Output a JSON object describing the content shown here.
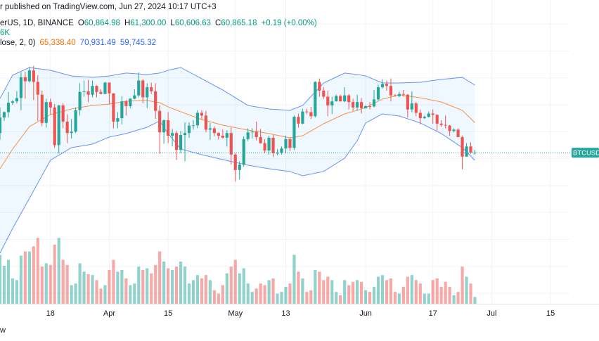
{
  "header": {
    "published": "r published on TradingView.com, Jun 27, 2024 10:17 UTC+3"
  },
  "legend": {
    "symbol": "erUS, 1D, BINANCE",
    "ohlc": [
      {
        "label": "O",
        "value": "60,864.98"
      },
      {
        "label": "H",
        "value": "61,300.00"
      },
      {
        "label": "L",
        "value": "60,606.63"
      },
      {
        "label": "C",
        "value": "60,865.18"
      }
    ],
    "change": "+0.19 (+0.00%)",
    "volume": "6K",
    "indicator": "lose, 2, 0)",
    "indicator_values": [
      "65,338.40",
      "70,931.49",
      "59,745.32"
    ]
  },
  "footer": "w",
  "chart_data": {
    "type": "candlestick",
    "price_label": "BTCUSD",
    "up_color": "#26a69a",
    "down_color": "#ef5350",
    "xlim": [
      0,
      135.5
    ],
    "xticks": [
      {
        "value": 12,
        "label": "18"
      },
      {
        "value": 26,
        "label": "Apr"
      },
      {
        "value": 40,
        "label": "15"
      },
      {
        "value": 56,
        "label": "May"
      },
      {
        "value": 68,
        "label": "13"
      },
      {
        "value": 87,
        "label": "Jun"
      },
      {
        "value": 103,
        "label": "17"
      },
      {
        "value": 117,
        "label": "Jul"
      },
      {
        "value": 131,
        "label": "15"
      }
    ],
    "ylim": [
      38430,
      83570
    ],
    "ygrid": [
      40000,
      44000,
      48000,
      52000,
      56000,
      60000,
      64000,
      68000,
      72000,
      76000,
      80000
    ],
    "grid": true,
    "x": [
      0,
      1,
      2,
      3,
      4,
      5,
      6,
      7,
      8,
      9,
      10,
      11,
      12,
      13,
      14,
      15,
      16,
      17,
      18,
      19,
      20,
      21,
      22,
      23,
      24,
      25,
      26,
      27,
      28,
      29,
      30,
      31,
      32,
      33,
      34,
      35,
      36,
      37,
      38,
      39,
      40,
      41,
      42,
      43,
      44,
      45,
      46,
      47,
      48,
      49,
      50,
      51,
      52,
      53,
      54,
      55,
      56,
      57,
      58,
      59,
      60,
      61,
      62,
      63,
      64,
      65,
      66,
      67,
      68,
      69,
      70,
      71,
      72,
      73,
      74,
      75,
      76,
      77,
      78,
      79,
      80,
      81,
      82,
      83,
      84,
      85,
      86,
      87,
      88,
      89,
      90,
      91,
      92,
      93,
      94,
      95,
      96,
      97,
      98,
      99,
      100,
      101,
      102,
      103,
      104,
      105,
      106,
      107,
      108,
      109,
      110,
      111,
      112,
      113
    ],
    "open": [
      63800,
      66100,
      66900,
      68300,
      68500,
      69000,
      72100,
      71500,
      73100,
      71400,
      69500,
      65300,
      68400,
      67600,
      62000,
      67900,
      65500,
      63800,
      64000,
      67200,
      69900,
      70000,
      69500,
      70800,
      69900,
      69600,
      71300,
      69700,
      65500,
      66000,
      68500,
      67800,
      68900,
      69400,
      71600,
      69100,
      70600,
      70000,
      67100,
      63900,
      65700,
      63400,
      63800,
      61300,
      63500,
      63800,
      64900,
      64950,
      66800,
      66400,
      64300,
      64500,
      63800,
      63400,
      63100,
      63800,
      60600,
      58300,
      59100,
      62900,
      63900,
      64000,
      63200,
      62300,
      61200,
      63100,
      60800,
      60850,
      61500,
      62900,
      61600,
      66200,
      65200,
      67000,
      66900,
      66300,
      71400,
      70100,
      69200,
      67900,
      68500,
      69300,
      68500,
      69400,
      68400,
      67600,
      68400,
      67500,
      67800,
      67750,
      68800,
      70600,
      71100,
      70800,
      69400,
      69300,
      69600,
      69500,
      67300,
      68200,
      66800,
      66000,
      66200,
      66700,
      66500,
      65200,
      65000,
      64900,
      64100,
      64300,
      63200,
      60300,
      61800,
      60864.98
    ],
    "high": [
      67600,
      67000,
      69900,
      68700,
      70000,
      72800,
      72900,
      73600,
      73800,
      72400,
      70100,
      68900,
      68900,
      68100,
      68000,
      68200,
      66600,
      65900,
      67600,
      71200,
      71600,
      71700,
      71600,
      70900,
      70300,
      71400,
      71300,
      69700,
      66900,
      69300,
      68700,
      69000,
      70300,
      72800,
      71800,
      71200,
      71300,
      71200,
      67900,
      65800,
      66900,
      64400,
      64100,
      64100,
      65400,
      65400,
      65700,
      67200,
      67200,
      67100,
      65300,
      64800,
      63900,
      64300,
      64200,
      64700,
      60800,
      59600,
      63300,
      64500,
      64500,
      65500,
      64400,
      62900,
      63400,
      63500,
      61400,
      61800,
      63400,
      63100,
      66400,
      66700,
      67400,
      67400,
      67700,
      71500,
      71900,
      70600,
      70100,
      69200,
      69500,
      69500,
      70600,
      69600,
      68900,
      69500,
      69000,
      67900,
      68400,
      70200,
      71000,
      71800,
      71600,
      71900,
      69600,
      69900,
      70200,
      69600,
      70000,
      68400,
      67300,
      66400,
      67000,
      67300,
      66600,
      65700,
      66400,
      65000,
      64500,
      64500,
      63400,
      62300,
      62400,
      61300
    ],
    "low": [
      62800,
      65600,
      66100,
      68000,
      68200,
      67200,
      68900,
      71300,
      68700,
      65600,
      64800,
      64600,
      66600,
      61600,
      60800,
      64500,
      62300,
      63000,
      63800,
      66400,
      69200,
      68400,
      69100,
      69100,
      69600,
      69600,
      68100,
      64500,
      64500,
      65100,
      66400,
      67500,
      68800,
      69100,
      68200,
      67500,
      69600,
      65900,
      60700,
      62200,
      62300,
      61800,
      59800,
      60800,
      59600,
      63100,
      64300,
      64500,
      65800,
      63900,
      62800,
      63300,
      62800,
      63000,
      61800,
      59100,
      56600,
      56900,
      58800,
      62600,
      63000,
      62700,
      62200,
      60800,
      60600,
      60200,
      60500,
      60600,
      60800,
      61100,
      61300,
      64600,
      65100,
      66600,
      65900,
      66100,
      69200,
      68900,
      66300,
      66600,
      68500,
      68500,
      68400,
      67300,
      67100,
      67100,
      66700,
      67400,
      67300,
      67600,
      68600,
      70400,
      70100,
      68500,
      69200,
      69100,
      69200,
      66100,
      66900,
      66300,
      65100,
      65900,
      66100,
      65200,
      64100,
      64700,
      64500,
      63400,
      63900,
      63200,
      58400,
      60300,
      60700,
      60606.63
    ],
    "close": [
      66100,
      66900,
      68300,
      68500,
      69000,
      72100,
      71500,
      73100,
      71400,
      69500,
      65300,
      68400,
      67600,
      62000,
      67900,
      65500,
      63800,
      64000,
      67200,
      69900,
      70000,
      69500,
      70800,
      69900,
      69600,
      71300,
      69700,
      65500,
      66000,
      68500,
      67800,
      68900,
      69400,
      71600,
      69100,
      70600,
      70000,
      67100,
      63900,
      65700,
      63400,
      63800,
      61300,
      63500,
      63800,
      64900,
      64950,
      66800,
      66400,
      64300,
      64500,
      63800,
      63400,
      63100,
      63800,
      60600,
      58300,
      59100,
      62900,
      63900,
      64000,
      63200,
      62300,
      61200,
      63100,
      60800,
      60850,
      61500,
      62900,
      61600,
      66200,
      65200,
      67000,
      66900,
      66300,
      71400,
      70100,
      69200,
      67900,
      68500,
      69300,
      68500,
      69400,
      68400,
      67600,
      68400,
      67500,
      67800,
      67750,
      68800,
      70600,
      71100,
      70800,
      69400,
      69300,
      69600,
      69500,
      67300,
      68200,
      66800,
      66000,
      66200,
      66700,
      66500,
      65200,
      65000,
      64900,
      64100,
      64300,
      63200,
      60300,
      61800,
      60900,
      60865.18
    ],
    "volume": {
      "ylim": [
        0,
        100
      ],
      "values": [
        58,
        45,
        52,
        30,
        28,
        57,
        62,
        62,
        68,
        78,
        44,
        48,
        46,
        70,
        78,
        52,
        46,
        22,
        24,
        48,
        38,
        35,
        34,
        28,
        18,
        22,
        40,
        52,
        38,
        40,
        30,
        22,
        24,
        44,
        40,
        42,
        36,
        46,
        62,
        50,
        42,
        40,
        44,
        50,
        44,
        24,
        28,
        34,
        30,
        34,
        28,
        16,
        12,
        22,
        36,
        44,
        52,
        36,
        42,
        24,
        14,
        18,
        24,
        22,
        28,
        30,
        12,
        14,
        20,
        24,
        58,
        38,
        30,
        14,
        16,
        40,
        38,
        28,
        32,
        28,
        14,
        10,
        28,
        22,
        26,
        28,
        26,
        16,
        14,
        20,
        32,
        34,
        28,
        30,
        14,
        12,
        20,
        32,
        34,
        28,
        24,
        12,
        12,
        28,
        30,
        20,
        26,
        20,
        10,
        14,
        44,
        32,
        24,
        8
      ]
    },
    "bollinger": {
      "x": [
        0,
        3,
        7,
        12,
        17,
        22,
        26,
        30,
        35,
        38,
        40,
        43,
        48,
        53,
        59,
        64,
        69,
        72,
        77,
        82,
        85,
        87,
        91,
        95,
        100,
        105,
        110,
        113
      ],
      "fill": "#2196f3",
      "upper": {
        "color": "#2962ff",
        "values": [
          68940,
          72390,
          73540,
          73120,
          72290,
          72080,
          72290,
          72710,
          72500,
          72710,
          73120,
          73540,
          71870,
          70200,
          67900,
          67380,
          67170,
          67900,
          71240,
          72710,
          72500,
          72290,
          71240,
          71240,
          71350,
          71770,
          72080,
          70931.49
        ]
      },
      "middle": {
        "color": "#ff6d00",
        "values": [
          58490,
          61420,
          64760,
          66540,
          67380,
          67900,
          68110,
          68530,
          68630,
          68320,
          67690,
          66960,
          65810,
          64970,
          64240,
          63720,
          63090,
          63400,
          65180,
          66640,
          67170,
          67590,
          68840,
          69470,
          69050,
          68420,
          67170,
          65338.4
        ]
      },
      "lower": {
        "color": "#2962ff",
        "values": [
          45950,
          49610,
          54100,
          59750,
          61630,
          62150,
          63200,
          63720,
          64660,
          65600,
          63720,
          61420,
          60580,
          59850,
          59020,
          58490,
          58080,
          57450,
          58080,
          60060,
          62670,
          65290,
          66640,
          66330,
          65290,
          63720,
          61630,
          59745.32
        ]
      }
    }
  }
}
